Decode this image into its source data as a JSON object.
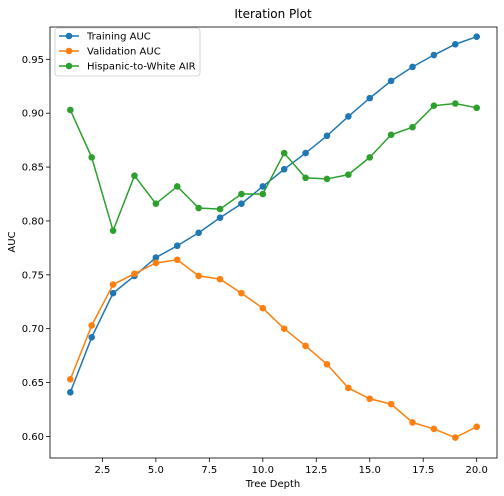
{
  "chart_data": {
    "type": "line",
    "title": "Iteration Plot",
    "xlabel": "Tree Depth",
    "ylabel": "AUC",
    "xlim": [
      0.05,
      20.95
    ],
    "ylim": [
      0.58,
      0.98
    ],
    "xticks": [
      2.5,
      5.0,
      7.5,
      10.0,
      12.5,
      15.0,
      17.5,
      20.0
    ],
    "xtick_labels": [
      "2.5",
      "5.0",
      "7.5",
      "10.0",
      "12.5",
      "15.0",
      "17.5",
      "20.0"
    ],
    "yticks": [
      0.6,
      0.65,
      0.7,
      0.75,
      0.8,
      0.85,
      0.9,
      0.95
    ],
    "ytick_labels": [
      "0.60",
      "0.65",
      "0.70",
      "0.75",
      "0.80",
      "0.85",
      "0.90",
      "0.95"
    ],
    "legend_position": "top-left",
    "x": [
      1,
      2,
      3,
      4,
      5,
      6,
      7,
      8,
      9,
      10,
      11,
      12,
      13,
      14,
      15,
      16,
      17,
      18,
      19,
      20
    ],
    "series": [
      {
        "name": "Training AUC",
        "color": "#1f77b4",
        "values": [
          0.641,
          0.692,
          0.733,
          0.749,
          0.766,
          0.777,
          0.789,
          0.803,
          0.816,
          0.832,
          0.848,
          0.863,
          0.879,
          0.897,
          0.914,
          0.93,
          0.943,
          0.954,
          0.964,
          0.971
        ]
      },
      {
        "name": "Validation AUC",
        "color": "#ff7f0e",
        "values": [
          0.653,
          0.703,
          0.741,
          0.751,
          0.761,
          0.764,
          0.749,
          0.746,
          0.733,
          0.719,
          0.7,
          0.684,
          0.667,
          0.645,
          0.635,
          0.63,
          0.613,
          0.607,
          0.599,
          0.609
        ]
      },
      {
        "name": "Hispanic-to-White AIR",
        "color": "#2ca02c",
        "values": [
          0.903,
          0.859,
          0.791,
          0.842,
          0.816,
          0.832,
          0.812,
          0.811,
          0.825,
          0.825,
          0.863,
          0.84,
          0.839,
          0.843,
          0.859,
          0.88,
          0.887,
          0.907,
          0.909,
          0.905
        ]
      }
    ]
  }
}
